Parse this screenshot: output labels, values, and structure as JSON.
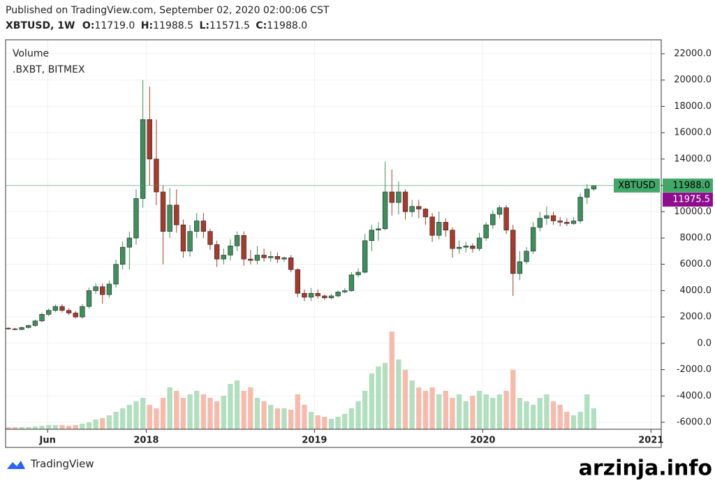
{
  "header": {
    "published": "Published on TradingView.com, September 02, 2020 02:00:06 CST",
    "symbol": "XBTUSD, 1W",
    "o_key": "O:",
    "o": "11719.0",
    "h_key": "H:",
    "h": "11988.5",
    "l_key": "L:",
    "l": "11571.5",
    "c_key": "C:",
    "c": "11988.0"
  },
  "footer": {
    "brand": "TradingView",
    "watermark": "arzinja.info"
  },
  "chart_data": {
    "type": "candlestick",
    "pane_title": "Volume",
    "source": ".BXBT, BITMEX",
    "x": [
      2017.18,
      2017.22,
      2017.26,
      2017.3,
      2017.34,
      2017.38,
      2017.42,
      2017.46,
      2017.5,
      2017.54,
      2017.58,
      2017.62,
      2017.66,
      2017.7,
      2017.74,
      2017.78,
      2017.82,
      2017.86,
      2017.9,
      2017.94,
      2017.98,
      2018.02,
      2018.06,
      2018.1,
      2018.14,
      2018.18,
      2018.22,
      2018.26,
      2018.3,
      2018.34,
      2018.38,
      2018.42,
      2018.46,
      2018.5,
      2018.54,
      2018.58,
      2018.62,
      2018.66,
      2018.7,
      2018.74,
      2018.78,
      2018.82,
      2018.86,
      2018.9,
      2018.94,
      2018.98,
      2019.02,
      2019.06,
      2019.1,
      2019.14,
      2019.18,
      2019.22,
      2019.26,
      2019.3,
      2019.34,
      2019.38,
      2019.42,
      2019.46,
      2019.5,
      2019.54,
      2019.58,
      2019.62,
      2019.66,
      2019.7,
      2019.74,
      2019.78,
      2019.82,
      2019.86,
      2019.9,
      2019.94,
      2019.98,
      2020.02,
      2020.06,
      2020.1,
      2020.14,
      2020.18,
      2020.22,
      2020.26,
      2020.3,
      2020.34,
      2020.38,
      2020.42,
      2020.46,
      2020.5,
      2020.54,
      2020.58,
      2020.62,
      2020.66
    ],
    "open": [
      1150,
      1100,
      1050,
      1200,
      1350,
      1700,
      2200,
      2500,
      2800,
      2500,
      2300,
      2000,
      2800,
      4000,
      4300,
      3700,
      4500,
      6000,
      7300,
      8000,
      11000,
      17000,
      14000,
      11500,
      8500,
      10500,
      9000,
      7000,
      8500,
      9300,
      8500,
      7500,
      6400,
      6700,
      7400,
      8200,
      6400,
      6300,
      6700,
      6500,
      6600,
      6400,
      6500,
      5600,
      3800,
      3500,
      3800,
      3600,
      3450,
      3600,
      3900,
      4000,
      5200,
      5400,
      7800,
      8600,
      8700,
      11500,
      10700,
      11500,
      10000,
      10400,
      10200,
      9600,
      8200,
      9200,
      8600,
      7200,
      7300,
      7400,
      7200,
      8000,
      9000,
      9800,
      10300,
      8600,
      5300,
      6200,
      7000,
      8800,
      9500,
      9700,
      9300,
      9200,
      9100,
      9300,
      11100,
      11719
    ],
    "high": [
      1220,
      1170,
      1270,
      1430,
      1800,
      2330,
      2650,
      2970,
      2970,
      2650,
      2440,
      2970,
      4240,
      4560,
      4560,
      4770,
      6360,
      7740,
      8480,
      11700,
      20000,
      19500,
      17000,
      12000,
      11800,
      11700,
      9400,
      9000,
      9900,
      9900,
      8700,
      7800,
      7200,
      7900,
      8500,
      8500,
      7100,
      7400,
      7200,
      7000,
      6900,
      6600,
      6700,
      5700,
      4100,
      4200,
      4100,
      3700,
      3750,
      4000,
      4200,
      5400,
      5700,
      8300,
      9000,
      9200,
      13800,
      13200,
      12300,
      11700,
      10900,
      10900,
      10300,
      9900,
      10000,
      9500,
      8800,
      7800,
      7700,
      7600,
      8400,
      9200,
      10100,
      10500,
      10500,
      9000,
      7000,
      7300,
      9200,
      10000,
      10400,
      10000,
      9600,
      9500,
      9600,
      11400,
      12100,
      11988.5
    ],
    "low": [
      1030,
      990,
      990,
      1130,
      1270,
      1600,
      2070,
      2350,
      2350,
      2160,
      1880,
      1880,
      2630,
      3760,
      3000,
      3480,
      4230,
      5640,
      5600,
      7500,
      10300,
      12000,
      10500,
      6000,
      8000,
      8400,
      6500,
      6600,
      8000,
      8000,
      7100,
      5800,
      6000,
      6300,
      7000,
      5900,
      6000,
      6000,
      6200,
      6200,
      6100,
      6200,
      5400,
      3500,
      3200,
      3200,
      3400,
      3300,
      3350,
      3500,
      3800,
      3900,
      5000,
      5300,
      7000,
      7800,
      8600,
      9700,
      9800,
      9400,
      9600,
      9500,
      9000,
      7700,
      7900,
      8100,
      6500,
      6800,
      6900,
      6900,
      7000,
      7800,
      8700,
      9500,
      8300,
      3600,
      4800,
      6000,
      6800,
      8500,
      9000,
      9000,
      8900,
      8900,
      9000,
      9100,
      10600,
      11571.5
    ],
    "close": [
      1100,
      1050,
      1200,
      1350,
      1700,
      2200,
      2500,
      2800,
      2500,
      2300,
      2000,
      2800,
      4000,
      4300,
      3700,
      4500,
      6000,
      7300,
      8000,
      11000,
      17000,
      14000,
      11500,
      8500,
      10500,
      9000,
      7000,
      8500,
      9300,
      8500,
      7500,
      6400,
      6700,
      7400,
      8200,
      6400,
      6300,
      6700,
      6500,
      6600,
      6400,
      6500,
      5600,
      3800,
      3500,
      3800,
      3600,
      3450,
      3600,
      3900,
      4000,
      5200,
      5400,
      7800,
      8600,
      8700,
      11500,
      10700,
      11500,
      10000,
      10400,
      10200,
      9600,
      8200,
      9200,
      8600,
      7200,
      7300,
      7400,
      7200,
      8000,
      9000,
      9800,
      10300,
      8600,
      5300,
      6200,
      7000,
      8800,
      9500,
      9700,
      9300,
      9200,
      9100,
      9300,
      11100,
      11719,
      11988
    ],
    "volume": [
      3,
      3,
      3,
      3,
      4,
      5,
      6,
      6,
      6,
      5,
      6,
      8,
      10,
      14,
      16,
      20,
      25,
      30,
      35,
      40,
      45,
      35,
      30,
      45,
      60,
      55,
      45,
      50,
      55,
      50,
      45,
      40,
      48,
      65,
      70,
      55,
      60,
      45,
      40,
      35,
      30,
      30,
      28,
      50,
      35,
      25,
      20,
      18,
      15,
      18,
      22,
      30,
      40,
      55,
      80,
      90,
      95,
      140,
      100,
      85,
      70,
      60,
      55,
      60,
      50,
      55,
      45,
      50,
      40,
      48,
      55,
      50,
      45,
      50,
      55,
      85,
      45,
      40,
      35,
      45,
      50,
      40,
      35,
      25,
      20,
      25,
      50,
      30
    ],
    "vlim": [
      0,
      150
    ],
    "up_color": "#3d8f5c",
    "down_color": "#a83a2b",
    "volume_up_color": "#a9dbb8",
    "volume_down_color": "#f5b4a3",
    "xlim": [
      2017.164,
      2021.061
    ],
    "xticks": [
      {
        "value": 2017.414,
        "label": "Jun"
      },
      2018,
      2019,
      2020,
      2021
    ],
    "ylim": [
      -6530,
      23060
    ],
    "yticks": [
      {
        "value": 22000,
        "label": "22000.0"
      },
      {
        "value": 20000,
        "label": "20000.0"
      },
      {
        "value": 18000,
        "label": "18000.0"
      },
      {
        "value": 16000,
        "label": "16000.0"
      },
      {
        "value": 14000,
        "label": "14000.0"
      },
      {
        "value": 12000,
        "label": "12000.0"
      },
      {
        "value": 10000,
        "label": "10000.0"
      },
      {
        "value": 8000,
        "label": "8000.0"
      },
      {
        "value": 6000,
        "label": "6000.0"
      },
      {
        "value": 4000,
        "label": "4000.0"
      },
      {
        "value": 2000,
        "label": "2000.0"
      },
      {
        "value": 0,
        "label": "0.0"
      },
      {
        "value": -2000,
        "label": "-2000.0"
      },
      {
        "value": -4000,
        "label": "-4000.0"
      },
      {
        "value": -6000,
        "label": "-6000.0"
      }
    ],
    "grid": true,
    "last_price": {
      "name": "XBTUSD",
      "value": 11988,
      "label": "11988.0",
      "color": "#43a867"
    },
    "mark_price": {
      "value": 11975.5,
      "label": "11975.5",
      "color": "#8e0d8e"
    }
  }
}
